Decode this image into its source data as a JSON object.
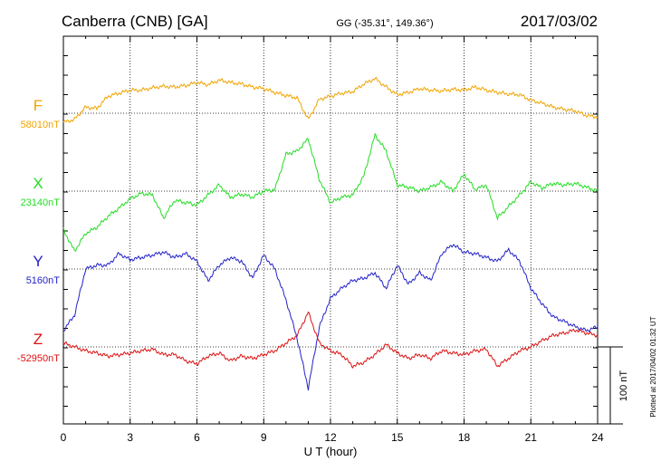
{
  "header": {
    "station": "Canberra (CNB)  [GA]",
    "coords": "GG (-35.31°, 149.36°)",
    "date": "2017/03/02"
  },
  "plotted_note": "Plotted at 2017/04/02 01:32 UT",
  "scale_bar_label": "100 nT",
  "chart_data": {
    "type": "line",
    "xlabel": "U T (hour)",
    "xlim": [
      0,
      24
    ],
    "xticks": [
      "0",
      "3",
      "6",
      "9",
      "12",
      "15",
      "18",
      "21",
      "24"
    ],
    "grid": true,
    "series": [
      {
        "name": "F",
        "baseline_label": "58010nT",
        "color": "#f0a400",
        "x": [
          0,
          0.5,
          1,
          1.5,
          2,
          2.5,
          3,
          3.5,
          4,
          4.5,
          5,
          5.5,
          6,
          6.5,
          7,
          7.5,
          8,
          8.5,
          9,
          9.5,
          10,
          10.5,
          11,
          11.5,
          12,
          12.5,
          13,
          13.5,
          14,
          14.5,
          15,
          15.5,
          16,
          16.5,
          17,
          17.5,
          18,
          18.5,
          19,
          19.5,
          20,
          20.5,
          21,
          21.5,
          22,
          22.5,
          23,
          23.5,
          24
        ],
        "values": [
          -12,
          -8,
          8,
          6,
          22,
          26,
          30,
          30,
          33,
          35,
          34,
          36,
          40,
          37,
          43,
          40,
          38,
          34,
          32,
          27,
          23,
          20,
          -8,
          18,
          22,
          26,
          28,
          38,
          45,
          34,
          24,
          27,
          32,
          30,
          29,
          31,
          30,
          34,
          30,
          27,
          25,
          24,
          17,
          13,
          8,
          5,
          3,
          -3,
          -5
        ]
      },
      {
        "name": "X",
        "baseline_label": "23140nT",
        "color": "#22dd22",
        "x": [
          0,
          0.5,
          1,
          1.5,
          2,
          2.5,
          3,
          3.5,
          4,
          4.5,
          5,
          5.5,
          6,
          6.5,
          7,
          7.5,
          8,
          8.5,
          9,
          9.5,
          10,
          10.5,
          11,
          11.5,
          12,
          12.5,
          13,
          13.5,
          14,
          14.5,
          15,
          15.5,
          16,
          16.5,
          17,
          17.5,
          18,
          18.5,
          19,
          19.5,
          20,
          20.5,
          21,
          21.5,
          22,
          22.5,
          23,
          23.5,
          24
        ],
        "values": [
          -50,
          -78,
          -55,
          -47,
          -33,
          -22,
          -10,
          -3,
          -5,
          -35,
          -12,
          -15,
          -18,
          -5,
          8,
          -8,
          -4,
          -8,
          0,
          2,
          48,
          52,
          68,
          15,
          -15,
          -8,
          -5,
          20,
          73,
          52,
          8,
          5,
          0,
          5,
          12,
          0,
          22,
          2,
          8,
          -35,
          -20,
          -5,
          12,
          4,
          10,
          8,
          10,
          5,
          0
        ]
      },
      {
        "name": "Y",
        "baseline_label": "5160nT",
        "color": "#2222c8",
        "x": [
          0,
          0.5,
          1,
          1.5,
          2,
          2.5,
          3,
          3.5,
          4,
          4.5,
          5,
          5.5,
          6,
          6.5,
          7,
          7.5,
          8,
          8.5,
          9,
          9.5,
          10,
          10.5,
          11,
          11.5,
          12,
          12.5,
          13,
          13.5,
          14,
          14.5,
          15,
          15.5,
          16,
          16.5,
          17,
          17.5,
          18,
          18.5,
          19,
          19.5,
          20,
          20.5,
          21,
          21.5,
          22,
          22.5,
          23,
          23.5,
          24
        ],
        "values": [
          -80,
          -60,
          0,
          5,
          5,
          20,
          12,
          15,
          18,
          22,
          15,
          20,
          10,
          -15,
          5,
          15,
          10,
          -12,
          18,
          0,
          -40,
          -90,
          -155,
          -75,
          -38,
          -25,
          -15,
          -12,
          -5,
          -25,
          5,
          -20,
          -5,
          -15,
          20,
          32,
          22,
          20,
          15,
          10,
          25,
          10,
          -25,
          -45,
          -62,
          -68,
          -75,
          -80,
          -75
        ]
      },
      {
        "name": "Z",
        "baseline_label": "-52950nT",
        "color": "#dd1111",
        "x": [
          0,
          0.5,
          1,
          1.5,
          2,
          2.5,
          3,
          3.5,
          4,
          4.5,
          5,
          5.5,
          6,
          6.5,
          7,
          7.5,
          8,
          8.5,
          9,
          9.5,
          10,
          10.5,
          11,
          11.5,
          12,
          12.5,
          13,
          13.5,
          14,
          14.5,
          15,
          15.5,
          16,
          16.5,
          17,
          17.5,
          18,
          18.5,
          19,
          19.5,
          20,
          20.5,
          21,
          21.5,
          22,
          22.5,
          23,
          23.5,
          24
        ],
        "values": [
          5,
          0,
          -5,
          -8,
          -12,
          -10,
          -8,
          -5,
          -3,
          -10,
          -10,
          -18,
          -22,
          -12,
          -8,
          -18,
          -12,
          -15,
          -10,
          -5,
          5,
          15,
          45,
          5,
          -5,
          -10,
          -25,
          -20,
          -10,
          3,
          -8,
          -15,
          -10,
          -15,
          -5,
          -8,
          -10,
          -5,
          -3,
          -25,
          -15,
          -5,
          0,
          8,
          15,
          18,
          22,
          18,
          15
        ]
      }
    ]
  }
}
